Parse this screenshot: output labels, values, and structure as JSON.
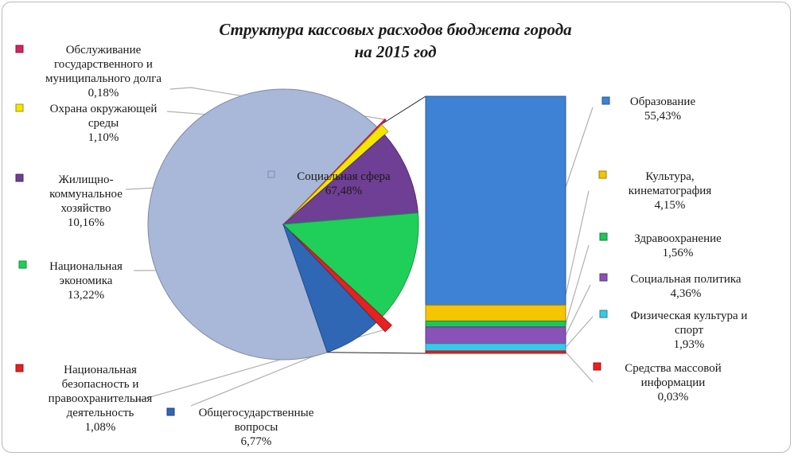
{
  "chart_data": {
    "type": "pie",
    "title": "Структура кассовых расходов бюджета города",
    "subtitle": "на 2015 год",
    "pie": {
      "slices": [
        {
          "key": "social",
          "label": "Социальная сфера",
          "value": 67.48,
          "display": "67,48%",
          "color": "#a9b8d9"
        },
        {
          "key": "debt",
          "label": "Обслуживание государственного и муниципального долга",
          "value": 0.18,
          "display": "0,18%",
          "color": "#d6245f"
        },
        {
          "key": "env",
          "label": "Охрана окружающей среды",
          "value": 1.1,
          "display": "1,10%",
          "color": "#f3e600"
        },
        {
          "key": "housing",
          "label": "Жилищно-коммунальное хозяйство",
          "value": 10.16,
          "display": "10,16%",
          "color": "#6e3f94"
        },
        {
          "key": "economy",
          "label": "Национальная экономика",
          "value": 13.22,
          "display": "13,22%",
          "color": "#1fcf5a"
        },
        {
          "key": "security",
          "label": "Национальная безопасность и правоохранительная деятельность",
          "value": 1.08,
          "display": "1,08%",
          "color": "#e82020"
        },
        {
          "key": "general",
          "label": "Общегосударственные вопросы",
          "value": 6.77,
          "display": "6,77%",
          "color": "#2f67b5"
        }
      ]
    },
    "bar": {
      "type": "stacked-bar",
      "parent": "Социальная сфера",
      "segments": [
        {
          "key": "education",
          "label": "Образование",
          "value": 55.43,
          "display": "55,43%",
          "color": "#3e82d6"
        },
        {
          "key": "culture",
          "label": "Культура, кинематография",
          "value": 4.15,
          "display": "4,15%",
          "color": "#f5c500"
        },
        {
          "key": "health",
          "label": "Здравоохранение",
          "value": 1.56,
          "display": "1,56%",
          "color": "#1fc45a"
        },
        {
          "key": "socpolicy",
          "label": "Социальная политика",
          "value": 4.36,
          "display": "4,36%",
          "color": "#8a52b8"
        },
        {
          "key": "sport",
          "label": "Физическая культура и спорт",
          "value": 1.93,
          "display": "1,93%",
          "color": "#38c9e6"
        },
        {
          "key": "media",
          "label": "Средства массовой информации",
          "value": 0.03,
          "display": "0,03%",
          "color": "#e82020"
        }
      ]
    }
  }
}
